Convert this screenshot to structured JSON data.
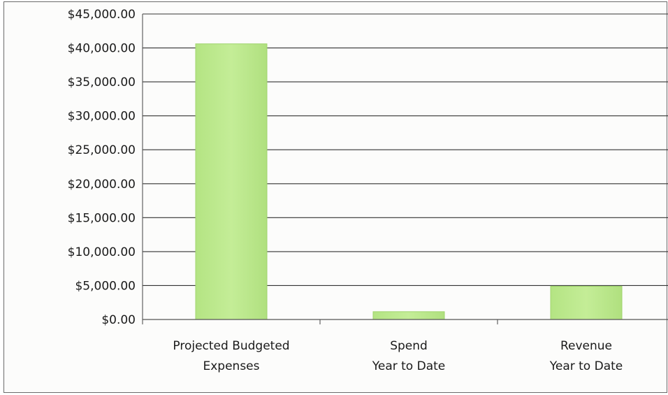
{
  "chart_data": {
    "type": "bar",
    "title": "",
    "xlabel": "",
    "ylabel": "",
    "categories": [
      [
        "Projected Budgeted",
        "Expenses"
      ],
      [
        "Spend",
        "Year to Date"
      ],
      [
        "Revenue",
        "Year to Date"
      ]
    ],
    "values": [
      40600,
      1150,
      4900
    ],
    "ylim": [
      0,
      45000
    ],
    "yticks": [
      0,
      5000,
      10000,
      15000,
      20000,
      25000,
      30000,
      35000,
      40000,
      45000
    ],
    "ytick_labels": [
      "$0.00",
      "$5,000.00",
      "$10,000.00",
      "$15,000.00",
      "$20,000.00",
      "$25,000.00",
      "$30,000.00",
      "$35,000.00",
      "$40,000.00",
      "$45,000.00"
    ],
    "grid": true,
    "legend": "none",
    "colors": {
      "bar_fill": "#b9e88a",
      "bar_edge": "#9fd46c",
      "grid": "#333333",
      "axis": "#555555"
    }
  }
}
